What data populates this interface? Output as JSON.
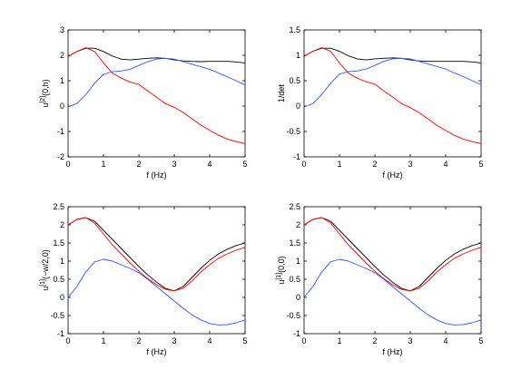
{
  "chart_data": [
    {
      "type": "line",
      "xlabel": "f (Hz)",
      "ylabel": "u",
      "ylabel_sup": "[2]",
      "ylabel_tail": "(0,h)",
      "xlim": [
        0,
        5
      ],
      "ylim": [
        -2,
        3
      ],
      "xticks": [
        "0",
        "1",
        "2",
        "3",
        "4",
        "5"
      ],
      "yticks": [
        "-2",
        "-1",
        "0",
        "1",
        "2",
        "3"
      ],
      "x": [
        0,
        0.25,
        0.5,
        0.75,
        1,
        1.25,
        1.5,
        1.75,
        2,
        2.25,
        2.5,
        2.75,
        3,
        3.25,
        3.5,
        3.75,
        4,
        4.25,
        4.5,
        4.75,
        5
      ],
      "series": [
        {
          "color": "#000000",
          "values": [
            1.95,
            2.15,
            2.28,
            2.28,
            2.15,
            1.97,
            1.85,
            1.82,
            1.85,
            1.88,
            1.9,
            1.88,
            1.82,
            1.78,
            1.76,
            1.75,
            1.76,
            1.76,
            1.76,
            1.74,
            1.7
          ]
        },
        {
          "color": "#ff0000",
          "values": [
            1.95,
            2.15,
            2.3,
            2.15,
            1.7,
            1.3,
            1.1,
            0.95,
            0.85,
            0.6,
            0.35,
            0.1,
            -0.05,
            -0.25,
            -0.5,
            -0.75,
            -0.95,
            -1.15,
            -1.3,
            -1.4,
            -1.48
          ]
        },
        {
          "color": "#3355ff",
          "values": [
            -0.03,
            0.1,
            0.45,
            0.9,
            1.25,
            1.35,
            1.38,
            1.45,
            1.6,
            1.75,
            1.85,
            1.88,
            1.85,
            1.75,
            1.65,
            1.55,
            1.45,
            1.3,
            1.15,
            1.0,
            0.83
          ]
        }
      ]
    },
    {
      "type": "line",
      "xlabel": "f (Hz)",
      "ylabel": "1/det",
      "ylabel_sup": "",
      "ylabel_tail": "",
      "xlim": [
        0,
        5
      ],
      "ylim": [
        -1,
        1.5
      ],
      "xticks": [
        "0",
        "1",
        "2",
        "3",
        "4",
        "5"
      ],
      "yticks": [
        "-1",
        "-0.5",
        "0",
        "0.5",
        "1",
        "1.5"
      ],
      "x": [
        0,
        0.25,
        0.5,
        0.75,
        1,
        1.25,
        1.5,
        1.75,
        2,
        2.25,
        2.5,
        2.75,
        3,
        3.25,
        3.5,
        3.75,
        4,
        4.25,
        4.5,
        4.75,
        5
      ],
      "series": [
        {
          "color": "#000000",
          "values": [
            0.98,
            1.08,
            1.14,
            1.14,
            1.08,
            0.99,
            0.93,
            0.91,
            0.93,
            0.94,
            0.95,
            0.94,
            0.91,
            0.89,
            0.88,
            0.88,
            0.88,
            0.88,
            0.88,
            0.87,
            0.85
          ]
        },
        {
          "color": "#ff0000",
          "values": [
            0.98,
            1.08,
            1.15,
            1.08,
            0.85,
            0.65,
            0.55,
            0.48,
            0.43,
            0.3,
            0.18,
            0.05,
            -0.03,
            -0.13,
            -0.25,
            -0.38,
            -0.48,
            -0.58,
            -0.65,
            -0.7,
            -0.74
          ]
        },
        {
          "color": "#3355ff",
          "values": [
            -0.02,
            0.05,
            0.23,
            0.45,
            0.63,
            0.68,
            0.69,
            0.73,
            0.8,
            0.88,
            0.93,
            0.94,
            0.93,
            0.88,
            0.83,
            0.78,
            0.73,
            0.65,
            0.58,
            0.5,
            0.42
          ]
        }
      ]
    },
    {
      "type": "line",
      "xlabel": "f (Hz)",
      "ylabel": "u",
      "ylabel_sup": "[1]",
      "ylabel_tail": "(−w/2,0)",
      "xlim": [
        0,
        5
      ],
      "ylim": [
        -1,
        2.5
      ],
      "xticks": [
        "0",
        "1",
        "2",
        "3",
        "4",
        "5"
      ],
      "yticks": [
        "-1",
        "-0.5",
        "0",
        "0.5",
        "1",
        "1.5",
        "2",
        "2.5"
      ],
      "x": [
        0,
        0.25,
        0.5,
        0.75,
        1,
        1.25,
        1.5,
        1.75,
        2,
        2.25,
        2.5,
        2.75,
        3,
        3.25,
        3.5,
        3.75,
        4,
        4.25,
        4.5,
        4.75,
        5
      ],
      "series": [
        {
          "color": "#000000",
          "values": [
            2.0,
            2.15,
            2.2,
            2.1,
            1.85,
            1.6,
            1.35,
            1.1,
            0.85,
            0.62,
            0.42,
            0.25,
            0.18,
            0.3,
            0.55,
            0.8,
            1.02,
            1.2,
            1.33,
            1.43,
            1.5
          ]
        },
        {
          "color": "#ff0000",
          "values": [
            2.0,
            2.15,
            2.2,
            2.05,
            1.75,
            1.45,
            1.2,
            0.95,
            0.72,
            0.52,
            0.35,
            0.22,
            0.18,
            0.25,
            0.45,
            0.7,
            0.9,
            1.08,
            1.2,
            1.3,
            1.38
          ]
        },
        {
          "color": "#3355ff",
          "values": [
            0.0,
            0.3,
            0.7,
            0.98,
            1.05,
            1.0,
            0.9,
            0.8,
            0.68,
            0.5,
            0.3,
            0.1,
            -0.1,
            -0.3,
            -0.48,
            -0.62,
            -0.72,
            -0.76,
            -0.75,
            -0.7,
            -0.62
          ]
        }
      ]
    },
    {
      "type": "line",
      "xlabel": "f (Hz)",
      "ylabel": "u",
      "ylabel_sup": "[1]",
      "ylabel_tail": "(0,0)",
      "xlim": [
        0,
        5
      ],
      "ylim": [
        -1,
        2.5
      ],
      "xticks": [
        "0",
        "1",
        "2",
        "3",
        "4",
        "5"
      ],
      "yticks": [
        "-1",
        "-0.5",
        "0",
        "0.5",
        "1",
        "1.5",
        "2",
        "2.5"
      ],
      "x": [
        0,
        0.25,
        0.5,
        0.75,
        1,
        1.25,
        1.5,
        1.75,
        2,
        2.25,
        2.5,
        2.75,
        3,
        3.25,
        3.5,
        3.75,
        4,
        4.25,
        4.5,
        4.75,
        5
      ],
      "series": [
        {
          "color": "#000000",
          "values": [
            2.0,
            2.15,
            2.2,
            2.1,
            1.85,
            1.6,
            1.35,
            1.1,
            0.85,
            0.62,
            0.42,
            0.25,
            0.18,
            0.3,
            0.55,
            0.8,
            1.02,
            1.2,
            1.33,
            1.43,
            1.5
          ]
        },
        {
          "color": "#ff0000",
          "values": [
            2.0,
            2.15,
            2.2,
            2.05,
            1.75,
            1.45,
            1.2,
            0.95,
            0.72,
            0.52,
            0.35,
            0.22,
            0.18,
            0.25,
            0.45,
            0.7,
            0.9,
            1.08,
            1.2,
            1.3,
            1.38
          ]
        },
        {
          "color": "#3355ff",
          "values": [
            0.0,
            0.3,
            0.7,
            0.98,
            1.05,
            1.0,
            0.9,
            0.8,
            0.68,
            0.5,
            0.3,
            0.1,
            -0.1,
            -0.3,
            -0.48,
            -0.62,
            -0.72,
            -0.76,
            -0.75,
            -0.7,
            -0.62
          ]
        }
      ]
    }
  ]
}
